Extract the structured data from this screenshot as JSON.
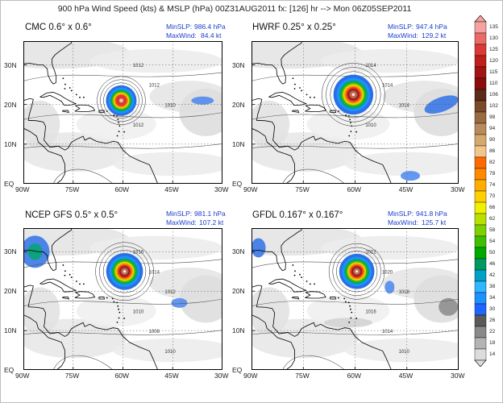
{
  "title": "900 hPa Wind Speed (kts) & MSLP (hPa) 00Z31AUG2011 fx: [126] hr --> Mon 06Z05SEP2011",
  "x_ticks": [
    "90W",
    "75W",
    "60W",
    "45W",
    "30W"
  ],
  "y_ticks": [
    "30N",
    "20N",
    "10N",
    "EQ"
  ],
  "min_label": "MinSLP:",
  "max_label": "MaxWind:",
  "panels": [
    {
      "model": "CMC 0.6° x 0.6°",
      "min_slp": "986.4 hPa",
      "max_wind": "84.4 kt",
      "storm": {
        "lon": -60.5,
        "lat": 21,
        "size": 1.0
      },
      "isobars": [
        "1012",
        "1012",
        "1010",
        "1012"
      ]
    },
    {
      "model": "HWRF 0.25° x 0.25°",
      "min_slp": "947.4 hPa",
      "max_wind": "129.2 kt",
      "storm": {
        "lon": -60.5,
        "lat": 22.5,
        "size": 1.3
      },
      "isobars": [
        "1014",
        "1014",
        "1014",
        "1010"
      ]
    },
    {
      "model": "NCEP GFS 0.5° x 0.5°",
      "min_slp": "981.1 hPa",
      "max_wind": "107.2 kt",
      "storm": {
        "lon": -59.5,
        "lat": 25,
        "size": 1.2
      },
      "isobars": [
        "1016",
        "1014",
        "1012",
        "1010",
        "1008",
        "1010"
      ]
    },
    {
      "model": "GFDL 0.167° x 0.167°",
      "min_slp": "941.8 hPa",
      "max_wind": "125.7 kt",
      "storm": {
        "lon": -59.5,
        "lat": 25,
        "size": 1.15
      },
      "isobars": [
        "1022",
        "1020",
        "1018",
        "1016",
        "1014",
        "1010"
      ]
    }
  ],
  "colorbar": {
    "levels": [
      "135",
      "130",
      "125",
      "120",
      "115",
      "110",
      "106",
      "102",
      "98",
      "94",
      "90",
      "86",
      "82",
      "78",
      "74",
      "70",
      "66",
      "62",
      "58",
      "54",
      "50",
      "46",
      "42",
      "38",
      "34",
      "30",
      "26",
      "22",
      "18",
      "14"
    ],
    "colors": [
      "#f4a3a0",
      "#e96a66",
      "#d93a36",
      "#c01d1d",
      "#a11414",
      "#8a0c0c",
      "#5a2a1a",
      "#7a4a2a",
      "#9a6a42",
      "#b88b5c",
      "#d6a86c",
      "#f2c58a",
      "#ff6a00",
      "#ff8a00",
      "#ffae00",
      "#ffd000",
      "#f0f000",
      "#b8e000",
      "#7fd000",
      "#3fbf00",
      "#00a800",
      "#009a60",
      "#00a0c8",
      "#30b8ff",
      "#1e90ff",
      "#1e66ff",
      "#5a5a5a",
      "#8a8a8a",
      "#b4b4b4",
      "#dcdcdc"
    ]
  }
}
